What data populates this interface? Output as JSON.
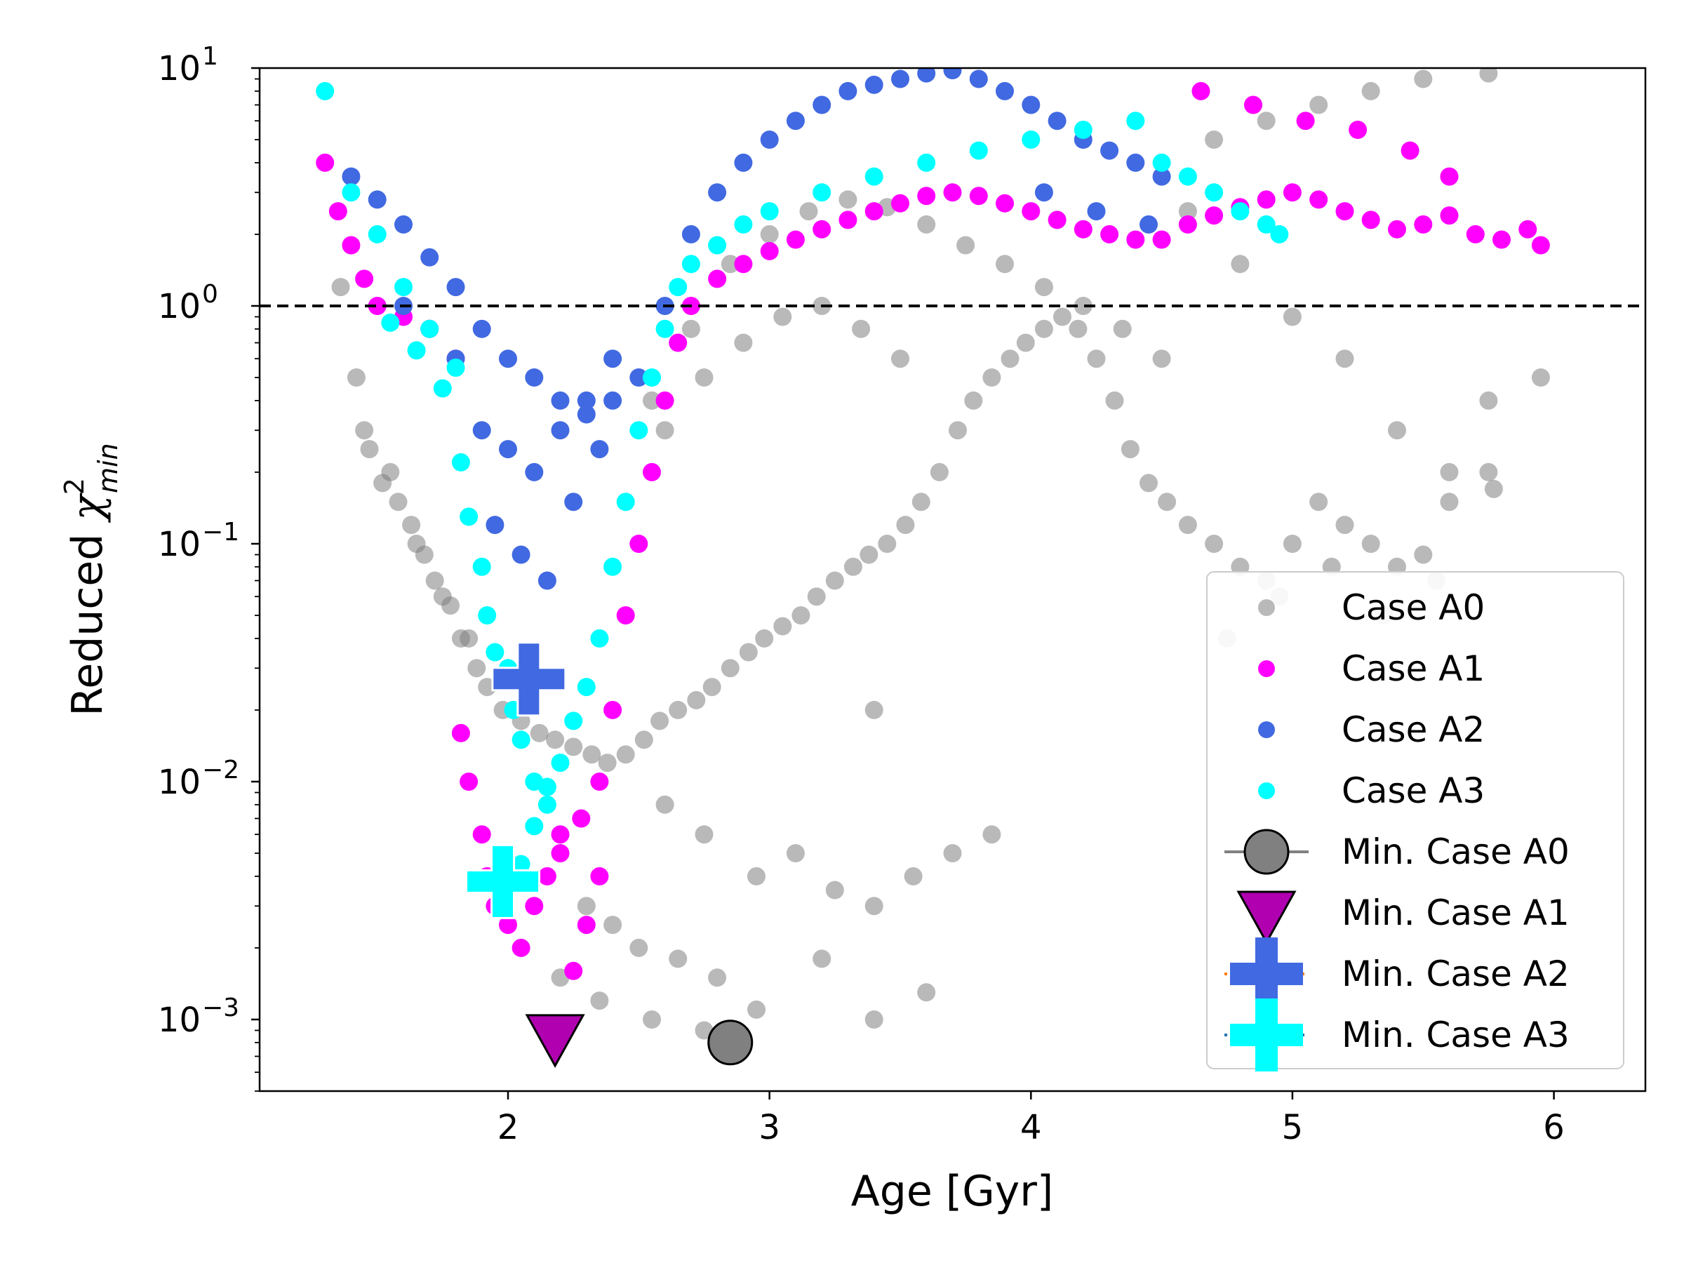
{
  "chart_data": {
    "type": "scatter",
    "title": "",
    "xlabel": "Age [Gyr]",
    "ylabel": {
      "main": "Reduced ",
      "symbol": "χ",
      "sup": "2",
      "sub": "min"
    },
    "xlim": [
      1.05,
      6.35
    ],
    "ylim": [
      0.0005,
      10
    ],
    "yscale": "log",
    "x_ticks": [
      {
        "value": 2,
        "label": "2"
      },
      {
        "value": 3,
        "label": "3"
      },
      {
        "value": 4,
        "label": "4"
      },
      {
        "value": 5,
        "label": "5"
      },
      {
        "value": 6,
        "label": "6"
      }
    ],
    "y_ticks": [
      {
        "value": 0.001,
        "base": "10",
        "exp": "−3"
      },
      {
        "value": 0.01,
        "base": "10",
        "exp": "−2"
      },
      {
        "value": 0.1,
        "base": "10",
        "exp": "−1"
      },
      {
        "value": 1,
        "base": "10",
        "exp": "0"
      },
      {
        "value": 10,
        "base": "10",
        "exp": "1"
      }
    ],
    "reference_line": {
      "y": 1,
      "style": "dashed",
      "color": "#000000"
    },
    "colors": {
      "A0": "#808080",
      "A1": "#ff00ff",
      "A2": "#4169e1",
      "A3": "#00ffff",
      "A1min": "#b000b0"
    },
    "series": [
      {
        "name": "Case A0",
        "color": "#808080",
        "marker": "circle",
        "opacity": 0.55,
        "x": [
          1.36,
          1.42,
          1.47,
          1.52,
          1.58,
          1.63,
          1.68,
          1.72,
          1.78,
          1.82,
          1.88,
          1.92,
          1.98,
          2.05,
          2.12,
          2.18,
          2.25,
          2.32,
          2.38,
          2.45,
          2.52,
          2.58,
          2.65,
          2.72,
          2.78,
          2.85,
          2.92,
          2.98,
          3.05,
          3.12,
          3.18,
          3.25,
          3.32,
          3.38,
          3.45,
          3.52,
          3.58,
          3.65,
          3.72,
          3.78,
          3.85,
          3.92,
          3.98,
          4.05,
          4.12,
          4.18,
          4.25,
          4.32,
          4.38,
          4.45,
          4.52,
          4.6,
          4.7,
          4.8,
          4.9,
          5.0,
          5.1,
          5.2,
          5.3,
          5.4,
          5.5,
          5.6,
          5.75,
          5.95,
          2.55,
          2.7,
          2.85,
          3.0,
          3.15,
          3.3,
          3.45,
          3.6,
          3.75,
          3.9,
          4.05,
          4.2,
          4.35,
          4.5,
          2.6,
          2.75,
          2.9,
          3.05,
          3.2,
          3.35,
          3.5,
          2.3,
          2.4,
          2.5,
          2.65,
          2.8,
          2.95,
          3.1,
          3.25,
          3.4,
          3.55,
          3.7,
          3.85,
          2.2,
          2.35,
          2.55,
          2.75,
          2.95,
          3.2,
          3.4,
          3.6,
          1.45,
          1.55,
          1.65,
          1.75,
          1.85,
          4.6,
          4.8,
          5.0,
          5.2,
          5.4,
          5.6,
          5.75,
          4.7,
          4.9,
          5.1,
          5.3,
          5.5,
          5.75,
          4.75,
          4.95,
          5.15,
          5.35,
          5.55,
          5.77,
          2.6,
          2.75,
          3.4
        ],
        "y": [
          1.2,
          0.5,
          0.25,
          0.18,
          0.15,
          0.12,
          0.09,
          0.07,
          0.055,
          0.04,
          0.03,
          0.025,
          0.02,
          0.018,
          0.016,
          0.015,
          0.014,
          0.013,
          0.012,
          0.013,
          0.015,
          0.018,
          0.02,
          0.022,
          0.025,
          0.03,
          0.035,
          0.04,
          0.045,
          0.05,
          0.06,
          0.07,
          0.08,
          0.09,
          0.1,
          0.12,
          0.15,
          0.2,
          0.3,
          0.4,
          0.5,
          0.6,
          0.7,
          0.8,
          0.9,
          0.8,
          0.6,
          0.4,
          0.25,
          0.18,
          0.15,
          0.12,
          0.1,
          0.08,
          0.07,
          0.1,
          0.15,
          0.12,
          0.1,
          0.08,
          0.09,
          0.15,
          0.2,
          0.5,
          0.4,
          0.8,
          1.5,
          2.0,
          2.5,
          2.8,
          2.6,
          2.2,
          1.8,
          1.5,
          1.2,
          1.0,
          0.8,
          0.6,
          0.3,
          0.5,
          0.7,
          0.9,
          1.0,
          0.8,
          0.6,
          0.003,
          0.0025,
          0.002,
          0.0018,
          0.0015,
          0.004,
          0.005,
          0.0035,
          0.003,
          0.004,
          0.005,
          0.006,
          0.0015,
          0.0012,
          0.001,
          0.0009,
          0.0011,
          0.0018,
          0.001,
          0.0013,
          0.3,
          0.2,
          0.1,
          0.06,
          0.04,
          2.5,
          1.5,
          0.9,
          0.6,
          0.3,
          0.2,
          0.4,
          5.0,
          6.0,
          7.0,
          8.0,
          9.0,
          9.5,
          0.04,
          0.06,
          0.08,
          0.05,
          0.07,
          0.17,
          0.008,
          0.006,
          0.02
        ]
      },
      {
        "name": "Case A1",
        "color": "#ff00ff",
        "marker": "circle",
        "opacity": 1.0,
        "x": [
          1.3,
          1.35,
          1.4,
          1.45,
          1.5,
          1.6,
          1.7,
          1.8,
          1.82,
          1.85,
          1.9,
          1.92,
          1.95,
          2.0,
          2.05,
          2.1,
          2.15,
          2.2,
          2.25,
          2.3,
          2.35,
          2.4,
          2.45,
          2.5,
          2.55,
          2.6,
          2.65,
          2.7,
          2.8,
          2.9,
          3.0,
          3.1,
          3.2,
          3.3,
          3.4,
          3.5,
          3.6,
          3.7,
          3.8,
          3.9,
          4.0,
          4.1,
          4.2,
          4.3,
          4.4,
          4.5,
          4.6,
          4.7,
          4.8,
          4.9,
          5.0,
          5.1,
          5.2,
          5.3,
          5.4,
          5.5,
          5.6,
          5.7,
          5.8,
          5.9,
          5.95,
          4.65,
          4.85,
          5.05,
          5.25,
          5.45,
          5.6,
          2.2,
          2.28,
          2.35
        ],
        "y": [
          4.0,
          2.5,
          1.8,
          1.3,
          1.0,
          0.9,
          0.8,
          0.6,
          0.016,
          0.01,
          0.006,
          0.004,
          0.003,
          0.0025,
          0.002,
          0.003,
          0.004,
          0.006,
          0.0016,
          0.0025,
          0.004,
          0.02,
          0.05,
          0.1,
          0.2,
          0.4,
          0.7,
          1.0,
          1.3,
          1.5,
          1.7,
          1.9,
          2.1,
          2.3,
          2.5,
          2.7,
          2.9,
          3.0,
          2.9,
          2.7,
          2.5,
          2.3,
          2.1,
          2.0,
          1.9,
          1.9,
          2.2,
          2.4,
          2.6,
          2.8,
          3.0,
          2.8,
          2.5,
          2.3,
          2.1,
          2.2,
          2.4,
          2.0,
          1.9,
          2.1,
          1.8,
          8.0,
          7.0,
          6.0,
          5.5,
          4.5,
          3.5,
          0.005,
          0.007,
          0.01
        ]
      },
      {
        "name": "Case A2",
        "color": "#4169e1",
        "marker": "circle",
        "opacity": 1.0,
        "x": [
          1.4,
          1.5,
          1.6,
          1.7,
          1.8,
          1.9,
          2.0,
          2.1,
          2.2,
          2.3,
          2.4,
          2.5,
          2.6,
          2.7,
          2.8,
          2.9,
          3.0,
          3.1,
          3.2,
          3.3,
          3.4,
          3.5,
          3.6,
          3.7,
          3.8,
          3.9,
          4.0,
          4.1,
          4.2,
          4.3,
          4.4,
          4.5,
          1.9,
          2.0,
          2.1,
          2.2,
          2.3,
          2.4,
          1.95,
          2.05,
          2.15,
          2.25,
          2.35,
          1.6,
          1.7,
          1.8,
          4.05,
          4.25,
          4.45
        ],
        "y": [
          3.5,
          2.8,
          2.2,
          1.6,
          1.2,
          0.8,
          0.6,
          0.5,
          0.4,
          0.35,
          0.4,
          0.5,
          1.0,
          2.0,
          3.0,
          4.0,
          5.0,
          6.0,
          7.0,
          8.0,
          8.5,
          9.0,
          9.5,
          9.8,
          9.0,
          8.0,
          7.0,
          6.0,
          5.0,
          4.5,
          4.0,
          3.5,
          0.3,
          0.25,
          0.2,
          0.3,
          0.4,
          0.6,
          0.12,
          0.09,
          0.07,
          0.15,
          0.25,
          1.0,
          0.8,
          0.6,
          3.0,
          2.5,
          2.2
        ]
      },
      {
        "name": "Case A3",
        "color": "#00ffff",
        "marker": "circle",
        "opacity": 1.0,
        "x": [
          1.3,
          1.4,
          1.5,
          1.6,
          1.7,
          1.8,
          1.82,
          1.85,
          1.9,
          1.92,
          1.95,
          2.0,
          2.02,
          2.05,
          2.1,
          2.15,
          2.2,
          2.25,
          2.3,
          2.35,
          2.4,
          2.45,
          2.5,
          2.55,
          2.6,
          2.65,
          2.7,
          2.8,
          2.9,
          3.0,
          3.2,
          3.4,
          3.6,
          3.8,
          4.0,
          4.2,
          4.4,
          4.5,
          4.6,
          4.7,
          4.8,
          4.9,
          4.95,
          1.55,
          1.65,
          1.75,
          2.05,
          2.1,
          2.15
        ],
        "y": [
          8.0,
          3.0,
          2.0,
          1.2,
          0.8,
          0.55,
          0.22,
          0.13,
          0.08,
          0.05,
          0.035,
          0.03,
          0.02,
          0.015,
          0.01,
          0.008,
          0.012,
          0.018,
          0.025,
          0.04,
          0.08,
          0.15,
          0.3,
          0.5,
          0.8,
          1.2,
          1.5,
          1.8,
          2.2,
          2.5,
          3.0,
          3.5,
          4.0,
          4.5,
          5.0,
          5.5,
          6.0,
          4.0,
          3.5,
          3.0,
          2.5,
          2.2,
          2.0,
          0.85,
          0.65,
          0.45,
          0.0045,
          0.0065,
          0.0095
        ]
      }
    ],
    "minima": [
      {
        "name": "Min. Case A0",
        "x": 2.85,
        "y": 0.0008,
        "marker": "circle",
        "color": "#808080"
      },
      {
        "name": "Min. Case A1",
        "x": 2.18,
        "y": 0.00085,
        "marker": "triangle-down",
        "color": "#b000b0"
      },
      {
        "name": "Min. Case A2",
        "x": 2.08,
        "y": 0.027,
        "marker": "plus",
        "color": "#4169e1"
      },
      {
        "name": "Min. Case A3",
        "x": 1.98,
        "y": 0.0038,
        "marker": "plus",
        "color": "#00ffff"
      }
    ],
    "legend": {
      "position": "lower-right",
      "entries": [
        {
          "label": "Case A0",
          "symbol": "dot",
          "color": "#808080"
        },
        {
          "label": "Case A1",
          "symbol": "dot",
          "color": "#ff00ff"
        },
        {
          "label": "Case A2",
          "symbol": "dot",
          "color": "#4169e1"
        },
        {
          "label": "Case A3",
          "symbol": "dot",
          "color": "#00ffff"
        },
        {
          "label": "Min. Case A0",
          "symbol": "circle-line",
          "color": "#808080"
        },
        {
          "label": "Min. Case A1",
          "symbol": "triangle-down",
          "color": "#b000b0"
        },
        {
          "label": "Min. Case A2",
          "symbol": "plus-line",
          "color": "#4169e1",
          "line_color": "#ff7f0e"
        },
        {
          "label": "Min. Case A3",
          "symbol": "plus-line",
          "color": "#00ffff",
          "line_color": "#1f77b4"
        }
      ]
    }
  }
}
